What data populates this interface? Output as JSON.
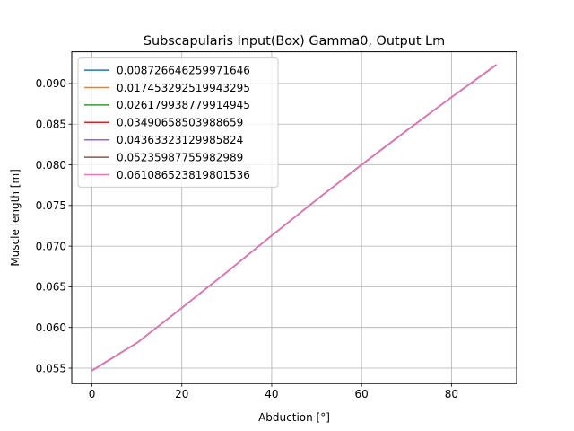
{
  "chart_data": {
    "type": "line",
    "title": "Subscapularis Input(Box) Gamma0, Output Lm",
    "xlabel": "Abduction [°]",
    "ylabel": "Muscle length [m]",
    "xlim": [
      -4.5,
      94.5
    ],
    "ylim": [
      0.0531,
      0.0939
    ],
    "xticks": [
      0,
      20,
      40,
      60,
      80
    ],
    "xtick_labels": [
      "0",
      "20",
      "40",
      "60",
      "80"
    ],
    "yticks": [
      0.055,
      0.06,
      0.065,
      0.07,
      0.075,
      0.08,
      0.085,
      0.09
    ],
    "ytick_labels": [
      "0.055",
      "0.060",
      "0.065",
      "0.070",
      "0.075",
      "0.080",
      "0.085",
      "0.090"
    ],
    "grid": true,
    "legend_position": "upper-left",
    "x": [
      0,
      10,
      20,
      30,
      40,
      50,
      60,
      70,
      80,
      90
    ],
    "series": [
      {
        "name": "0.008726646259971646",
        "color": "#1f77b4",
        "values": [
          0.0547,
          0.0581,
          0.0624,
          0.0668,
          0.0713,
          0.0757,
          0.08,
          0.0842,
          0.0883,
          0.0923
        ]
      },
      {
        "name": "0.017453292519943295",
        "color": "#ff7f0e",
        "values": [
          0.0547,
          0.0581,
          0.0624,
          0.0668,
          0.0713,
          0.0757,
          0.08,
          0.0842,
          0.0883,
          0.0923
        ]
      },
      {
        "name": "0.026179938779914945",
        "color": "#2ca02c",
        "values": [
          0.0547,
          0.0581,
          0.0624,
          0.0668,
          0.0713,
          0.0757,
          0.08,
          0.0842,
          0.0883,
          0.0923
        ]
      },
      {
        "name": "0.03490658503988659",
        "color": "#d62728",
        "values": [
          0.0547,
          0.0581,
          0.0624,
          0.0668,
          0.0713,
          0.0757,
          0.08,
          0.0842,
          0.0883,
          0.0923
        ]
      },
      {
        "name": "0.04363323129985824",
        "color": "#9467bd",
        "values": [
          0.0547,
          0.0581,
          0.0624,
          0.0668,
          0.0713,
          0.0757,
          0.08,
          0.0842,
          0.0883,
          0.0923
        ]
      },
      {
        "name": "0.05235987755982989",
        "color": "#8c564b",
        "values": [
          0.0547,
          0.0581,
          0.0624,
          0.0668,
          0.0713,
          0.0757,
          0.08,
          0.0842,
          0.0883,
          0.0923
        ]
      },
      {
        "name": "0.061086523819801536",
        "color": "#e377c2",
        "values": [
          0.0547,
          0.0581,
          0.0624,
          0.0668,
          0.0713,
          0.0757,
          0.08,
          0.0842,
          0.0883,
          0.0923
        ]
      }
    ]
  }
}
